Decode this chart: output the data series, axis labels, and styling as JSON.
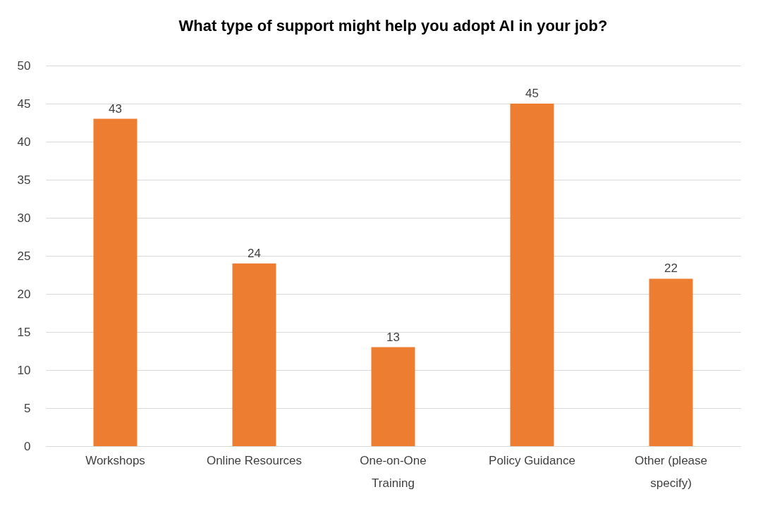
{
  "chart_data": {
    "type": "bar",
    "title": "What type of support might help you adopt AI in your job?",
    "categories": [
      "Workshops",
      "Online Resources",
      "One-on-One Training",
      "Policy Guidance",
      "Other (please specify)"
    ],
    "values": [
      43,
      24,
      13,
      45,
      22
    ],
    "color": "#ed7d31",
    "ylim": [
      0,
      50
    ],
    "yticks": [
      0,
      5,
      10,
      15,
      20,
      25,
      30,
      35,
      40,
      45,
      50
    ],
    "grid": "y",
    "data_labels": true
  }
}
